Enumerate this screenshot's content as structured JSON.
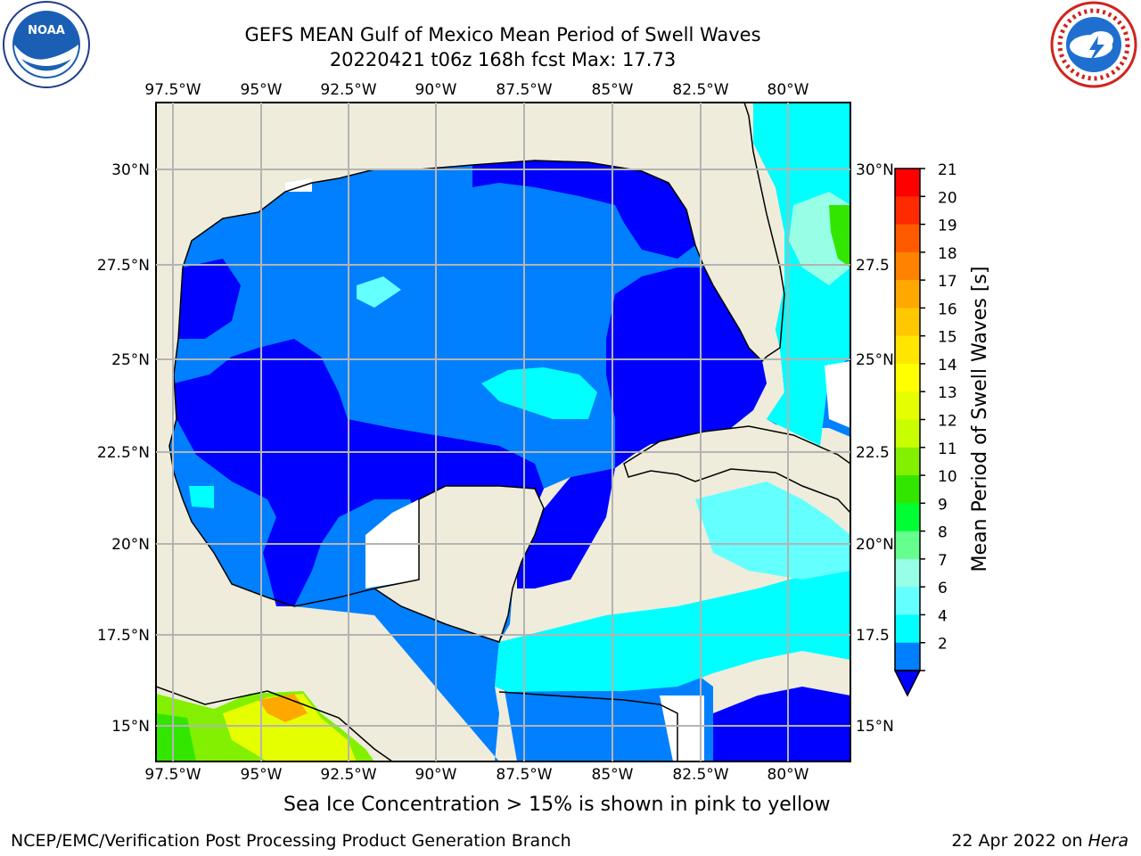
{
  "title_line1": "GEFS MEAN Gulf of Mexico Mean Period of Swell Waves",
  "title_line2": "20220421 t06z 168h fcst   Max: 17.73",
  "note": "Sea Ice Concentration > 15% is shown in pink to yellow",
  "footer_left": "NCEP/EMC/Verification Post Processing Product Generation Branch",
  "footer_right_date": "22 Apr 2022 on ",
  "footer_right_machine": "Hera",
  "logos": {
    "left": "noaa-logo",
    "right": "nws-logo"
  },
  "map": {
    "lon_labels": [
      "97.5°W",
      "95°W",
      "92.5°W",
      "90°W",
      "87.5°W",
      "85°W",
      "82.5°W",
      "80°W"
    ],
    "lat_labels_left": [
      "30°N",
      "27.5°N",
      "25°N",
      "22.5°N",
      "20°N",
      "17.5°N",
      "15°N"
    ],
    "lat_labels_right": [
      "30°N",
      "27.5",
      "25°N",
      "22.5",
      "20°N",
      "17.5",
      "15°N"
    ],
    "colors": {
      "land": "#efecdb",
      "grid": "#b4b4b4"
    }
  },
  "colorbar": {
    "label": "Mean Period of Swell Waves [s]",
    "ticks": [
      "21",
      "20",
      "19",
      "18",
      "17",
      "16",
      "15",
      "14",
      "13",
      "12",
      "11",
      "10",
      "9",
      "8",
      "7",
      "6",
      "4",
      "2"
    ],
    "band_colors_top_to_bottom": [
      "#ff0000",
      "#ff2a00",
      "#ff5a00",
      "#ff8200",
      "#ffa800",
      "#ffc800",
      "#ffe600",
      "#ffff00",
      "#e6ff00",
      "#c8ff00",
      "#82f000",
      "#32e600",
      "#00ff32",
      "#64ff8c",
      "#96ffe6",
      "#64ffff",
      "#00ffff",
      "#0080ff"
    ],
    "extend_color": "#0000ff"
  }
}
